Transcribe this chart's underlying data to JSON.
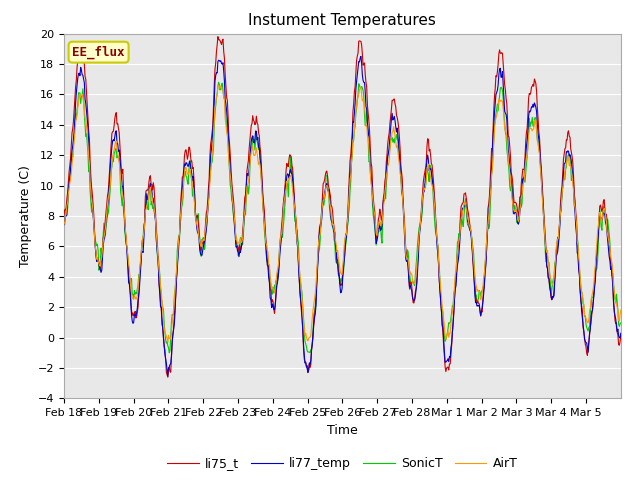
{
  "title": "Instument Temperatures",
  "xlabel": "Time",
  "ylabel": "Temperature (C)",
  "ylim": [
    -4,
    20
  ],
  "yticks": [
    -4,
    -2,
    0,
    2,
    4,
    6,
    8,
    10,
    12,
    14,
    16,
    18,
    20
  ],
  "xtick_labels": [
    "Feb 18",
    "Feb 19",
    "Feb 20",
    "Feb 21",
    "Feb 22",
    "Feb 23",
    "Feb 24",
    "Feb 25",
    "Feb 26",
    "Feb 27",
    "Feb 28",
    "Mar 1",
    "Mar 2",
    "Mar 3",
    "Mar 4",
    "Mar 5"
  ],
  "colors": {
    "li75_t": "#cc0000",
    "li77_temp": "#0000cc",
    "SonicT": "#00cc00",
    "AirT": "#ff9900"
  },
  "annotation_text": "EE_flux",
  "annotation_color": "#8b0000",
  "annotation_bg": "#ffffcc",
  "annotation_border": "#cccc00",
  "plot_bg": "#e8e8e8",
  "fig_bg": "#ffffff",
  "grid_color": "#ffffff",
  "title_fontsize": 11,
  "axis_fontsize": 9,
  "tick_fontsize": 8,
  "legend_fontsize": 9
}
